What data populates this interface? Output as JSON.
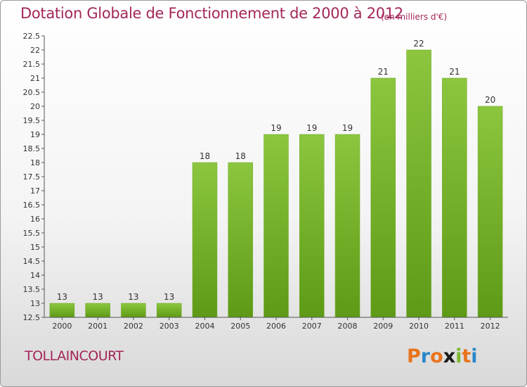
{
  "chart_data": {
    "type": "bar",
    "title": "Dotation Globale de Fonctionnement de 2000 à 2012",
    "subtitle": "(en milliers d'€)",
    "categories": [
      "2000",
      "2001",
      "2002",
      "2003",
      "2004",
      "2005",
      "2006",
      "2007",
      "2008",
      "2009",
      "2010",
      "2011",
      "2012"
    ],
    "values": [
      13,
      13,
      13,
      13,
      18,
      18,
      19,
      19,
      19,
      21,
      22,
      21,
      20
    ],
    "data_labels": [
      "13",
      "13",
      "13",
      "13",
      "18",
      "18",
      "19",
      "19",
      "19",
      "21",
      "22",
      "21",
      "20"
    ],
    "ylim": [
      12.5,
      22.5
    ],
    "yticks": [
      "12.5",
      "13",
      "13.5",
      "14",
      "14.5",
      "15",
      "15.5",
      "16",
      "16.5",
      "17",
      "17.5",
      "18",
      "18.5",
      "19",
      "19.5",
      "20",
      "20.5",
      "21",
      "21.5",
      "22",
      "22.5"
    ],
    "xlabel": "",
    "ylabel": "",
    "grid": false,
    "bar_color": "#8cc63f",
    "bar_color_dark": "#5e9a16"
  },
  "footer": {
    "town": "TOLLAINCOURT",
    "logo_letters": [
      "P",
      "r",
      "o",
      "x",
      "i",
      "t",
      "i"
    ],
    "logo_colors": [
      "#e9731c",
      "#2a88c8",
      "#e9731c",
      "#1a1a1a",
      "#7cb82f",
      "#e9731c",
      "#2a88c8"
    ]
  }
}
